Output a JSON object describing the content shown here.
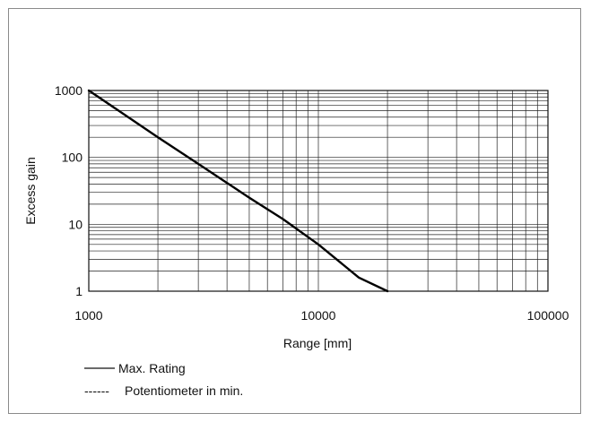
{
  "chart_data": {
    "type": "line",
    "xlabel": "Range [mm]",
    "ylabel": "Excess gain",
    "x_scale": "log",
    "y_scale": "log",
    "xlim": [
      1000,
      100000
    ],
    "ylim": [
      1,
      1000
    ],
    "x_ticks": [
      1000,
      10000,
      100000
    ],
    "x_tick_labels": [
      "1000",
      "10000",
      "100000"
    ],
    "y_ticks": [
      1,
      10,
      100,
      1000
    ],
    "y_tick_labels": [
      "1",
      "10",
      "100",
      "1000"
    ],
    "grid": true,
    "legend_position": "bottom-left",
    "series": [
      {
        "name": "Max. Rating",
        "style": "solid",
        "color": "#000000",
        "x": [
          1000,
          2000,
          3000,
          5000,
          7000,
          10000,
          15000,
          20000
        ],
        "y": [
          1000,
          200,
          80,
          25,
          12,
          5,
          1.6,
          1
        ]
      }
    ],
    "legend": [
      {
        "label": "Max. Rating",
        "style": "solid",
        "sample": "————"
      },
      {
        "label": "Potentiometer in min.",
        "style": "dashed",
        "sample": "------"
      }
    ]
  }
}
